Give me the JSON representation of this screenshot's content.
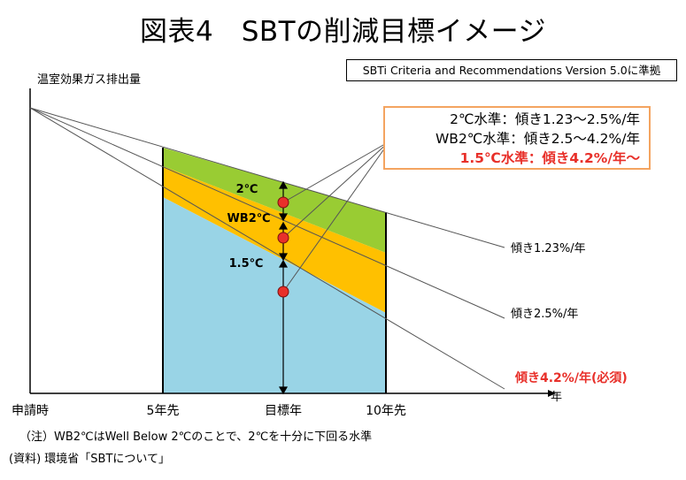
{
  "title": "図表4　SBTの削減目標イメージ",
  "source_badge": "SBTi Criteria and Recommendations Version 5.0に準拠",
  "y_axis_label": "温室効果ガス排出量",
  "x_axis_label": "年",
  "x_ticks": [
    "申請時",
    "5年先",
    "目標年",
    "10年先"
  ],
  "zone_labels": [
    "2℃",
    "WB2℃",
    "1.5℃"
  ],
  "line_labels": [
    "傾き1.23%/年",
    "傾き2.5%/年",
    "傾き4.2%/年(必須)"
  ],
  "legend": [
    {
      "name": "2℃水準",
      "sep": "：",
      "value": "傾き1.23～2.5%/年",
      "emphasis": false
    },
    {
      "name": "WB2℃水準",
      "sep": "：",
      "value": "傾き2.5～4.2%/年",
      "emphasis": false
    },
    {
      "name": "1.5℃水準",
      "sep": "：",
      "value": "傾き4.2%/年～",
      "emphasis": true
    }
  ],
  "colors": {
    "zone_2c": "#99cc33",
    "zone_wb2c": "#ffc000",
    "zone_15c": "#99d4e6",
    "marker": "#e8302a",
    "emphasis_text": "#e8302a",
    "legend_border": "#f4a460"
  },
  "note": "（注）WB2℃はWell Below 2℃のことで、2℃を十分に下回る水準",
  "source": "(資料) 環境省「SBTについて」"
}
